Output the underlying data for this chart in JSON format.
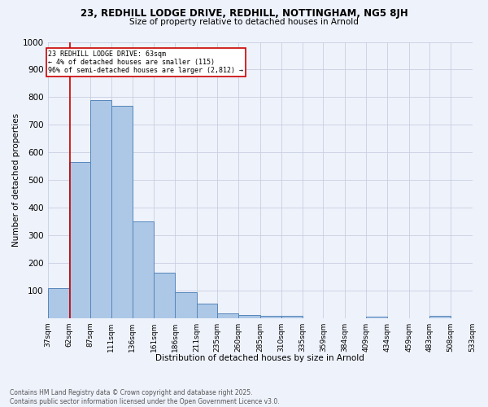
{
  "title_line1": "23, REDHILL LODGE DRIVE, REDHILL, NOTTINGHAM, NG5 8JH",
  "title_line2": "Size of property relative to detached houses in Arnold",
  "xlabel": "Distribution of detached houses by size in Arnold",
  "ylabel": "Number of detached properties",
  "bin_edges": [
    37,
    62,
    87,
    111,
    136,
    161,
    186,
    211,
    235,
    260,
    285,
    310,
    335,
    359,
    384,
    409,
    434,
    459,
    483,
    508,
    533
  ],
  "bar_heights": [
    110,
    565,
    790,
    770,
    350,
    165,
    95,
    52,
    17,
    12,
    10,
    8,
    0,
    0,
    0,
    7,
    0,
    0,
    8,
    0
  ],
  "bar_color": "#adc8e6",
  "bar_edge_color": "#5585bb",
  "bg_color": "#eef2fb",
  "grid_color": "#c8cfe0",
  "property_size": 63,
  "red_line_color": "#cc0000",
  "annotation_text": "23 REDHILL LODGE DRIVE: 63sqm\n← 4% of detached houses are smaller (115)\n96% of semi-detached houses are larger (2,812) →",
  "annotation_box_color": "#ffffff",
  "annotation_border_color": "#cc0000",
  "ylim": [
    0,
    1000
  ],
  "yticks": [
    0,
    100,
    200,
    300,
    400,
    500,
    600,
    700,
    800,
    900,
    1000
  ],
  "footer_line1": "Contains HM Land Registry data © Crown copyright and database right 2025.",
  "footer_line2": "Contains public sector information licensed under the Open Government Licence v3.0.",
  "tick_labels": [
    "37sqm",
    "62sqm",
    "87sqm",
    "111sqm",
    "136sqm",
    "161sqm",
    "186sqm",
    "211sqm",
    "235sqm",
    "260sqm",
    "285sqm",
    "310sqm",
    "335sqm",
    "359sqm",
    "384sqm",
    "409sqm",
    "434sqm",
    "459sqm",
    "483sqm",
    "508sqm",
    "533sqm"
  ]
}
